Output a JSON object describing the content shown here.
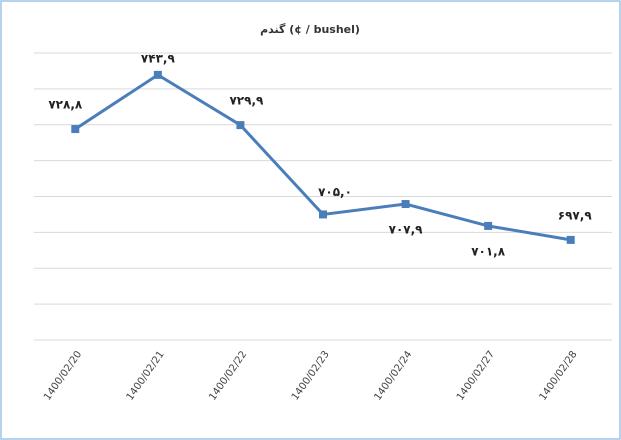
{
  "chart_data": {
    "type": "line",
    "title": "گندم (¢ / bushel)",
    "categories": [
      "1400/02/20",
      "1400/02/21",
      "1400/02/22",
      "1400/02/23",
      "1400/02/24",
      "1400/02/27",
      "1400/02/28"
    ],
    "series": [
      {
        "color": "#4a7ebb",
        "values": [
          728.8,
          743.9,
          729.9,
          705.0,
          707.9,
          701.8,
          697.9
        ],
        "value_labels": [
          "۷۲۸,۸",
          "۷۴۳,۹",
          "۷۲۹,۹",
          "۷۰۵,۰",
          "۷۰۷,۹",
          "۷۰۱,۸",
          "۶۹۷,۹"
        ]
      }
    ],
    "ylim": [
      670,
      750
    ],
    "yticks": [
      670,
      680,
      690,
      700,
      710,
      720,
      730,
      740,
      750
    ],
    "grid": true
  }
}
